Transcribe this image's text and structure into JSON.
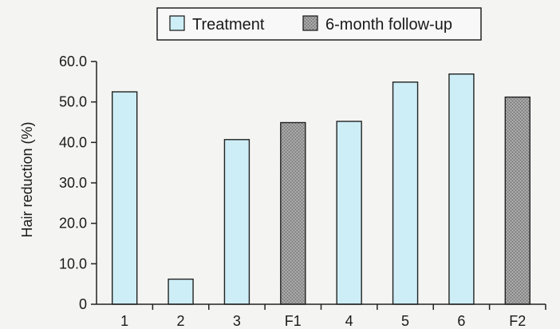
{
  "chart_data": {
    "type": "bar",
    "title": "",
    "xlabel": "",
    "ylabel": "Hair reduction (%)",
    "ylim": [
      0,
      60
    ],
    "yticks": [
      "0",
      "10.0",
      "20.0",
      "30.0",
      "40.0",
      "50.0",
      "60.0"
    ],
    "grid": false,
    "legend_position": "top",
    "categories": [
      "1",
      "2",
      "3",
      "F1",
      "4",
      "5",
      "6",
      "F2"
    ],
    "values": [
      52.5,
      6.2,
      40.7,
      44.9,
      45.2,
      54.9,
      56.9,
      51.2
    ],
    "bar_series": [
      "Treatment",
      "Treatment",
      "Treatment",
      "6-month follow-up",
      "Treatment",
      "Treatment",
      "Treatment",
      "6-month follow-up"
    ],
    "series": [
      {
        "name": "Treatment",
        "color": "#cdeef6",
        "pattern": "solid"
      },
      {
        "name": "6-month follow-up",
        "color": "#8d8d8d",
        "pattern": "stipple"
      }
    ]
  }
}
